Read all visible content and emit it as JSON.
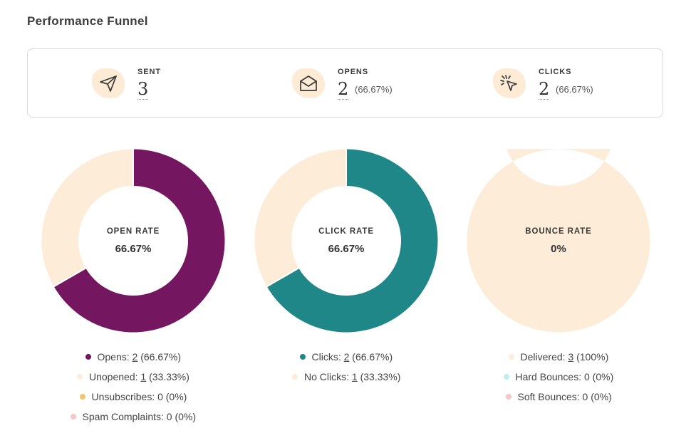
{
  "title": "Performance Funnel",
  "stats": {
    "sent": {
      "label": "SENT",
      "value": "3",
      "pct": "",
      "icon": "send-icon"
    },
    "opens": {
      "label": "OPENS",
      "value": "2",
      "pct": "(66.67%)",
      "icon": "envelope-icon"
    },
    "clicks": {
      "label": "CLICKS",
      "value": "2",
      "pct": "(66.67%)",
      "icon": "cursor-click-icon"
    }
  },
  "colors": {
    "opens": "#741660",
    "clicks": "#1f8788",
    "light": "#fdecd7",
    "unsubscribes": "#f2c36e",
    "spam": "#f7c7c5",
    "hard_bounces": "#bdf0e6",
    "soft_bounces": "#f7c7c5"
  },
  "chart_data": [
    {
      "type": "pie",
      "center_label": "OPEN RATE",
      "center_value": "66.67%",
      "slices": [
        {
          "name": "Opens",
          "value": 2,
          "color": "#741660"
        },
        {
          "name": "Unopened",
          "value": 1,
          "color": "#fdecd7"
        }
      ],
      "legend": [
        {
          "pre": "Opens: ",
          "link": "2",
          "post": " (66.67%)",
          "color": "#741660"
        },
        {
          "pre": "Unopened: ",
          "link": "1",
          "post": " (33.33%)",
          "color": "#fdecd7"
        },
        {
          "pre": "Unsubscribes: 0 (0%)",
          "link": "",
          "post": "",
          "color": "#f2c36e"
        },
        {
          "pre": "Spam Complaints: 0 (0%)",
          "link": "",
          "post": "",
          "color": "#f7c7c5"
        }
      ]
    },
    {
      "type": "pie",
      "center_label": "CLICK RATE",
      "center_value": "66.67%",
      "slices": [
        {
          "name": "Clicks",
          "value": 2,
          "color": "#1f8788"
        },
        {
          "name": "No Clicks",
          "value": 1,
          "color": "#fdecd7"
        }
      ],
      "legend": [
        {
          "pre": "Clicks: ",
          "link": "2",
          "post": " (66.67%)",
          "color": "#1f8788"
        },
        {
          "pre": "No Clicks: ",
          "link": "1",
          "post": " (33.33%)",
          "color": "#fdecd7"
        }
      ]
    },
    {
      "type": "pie",
      "center_label": "BOUNCE RATE",
      "center_value": "0%",
      "slices": [
        {
          "name": "Delivered",
          "value": 3,
          "color": "#fdecd7"
        },
        {
          "name": "Hard Bounces",
          "value": 0,
          "color": "#bdf0e6"
        },
        {
          "name": "Soft Bounces",
          "value": 0,
          "color": "#f7c7c5"
        }
      ],
      "legend": [
        {
          "pre": "Delivered: ",
          "link": "3",
          "post": " (100%)",
          "color": "#fdecd7"
        },
        {
          "pre": "Hard Bounces: 0 (0%)",
          "link": "",
          "post": "",
          "color": "#bdf0e6"
        },
        {
          "pre": "Soft Bounces: 0 (0%)",
          "link": "",
          "post": "",
          "color": "#f7c7c5"
        }
      ]
    }
  ]
}
